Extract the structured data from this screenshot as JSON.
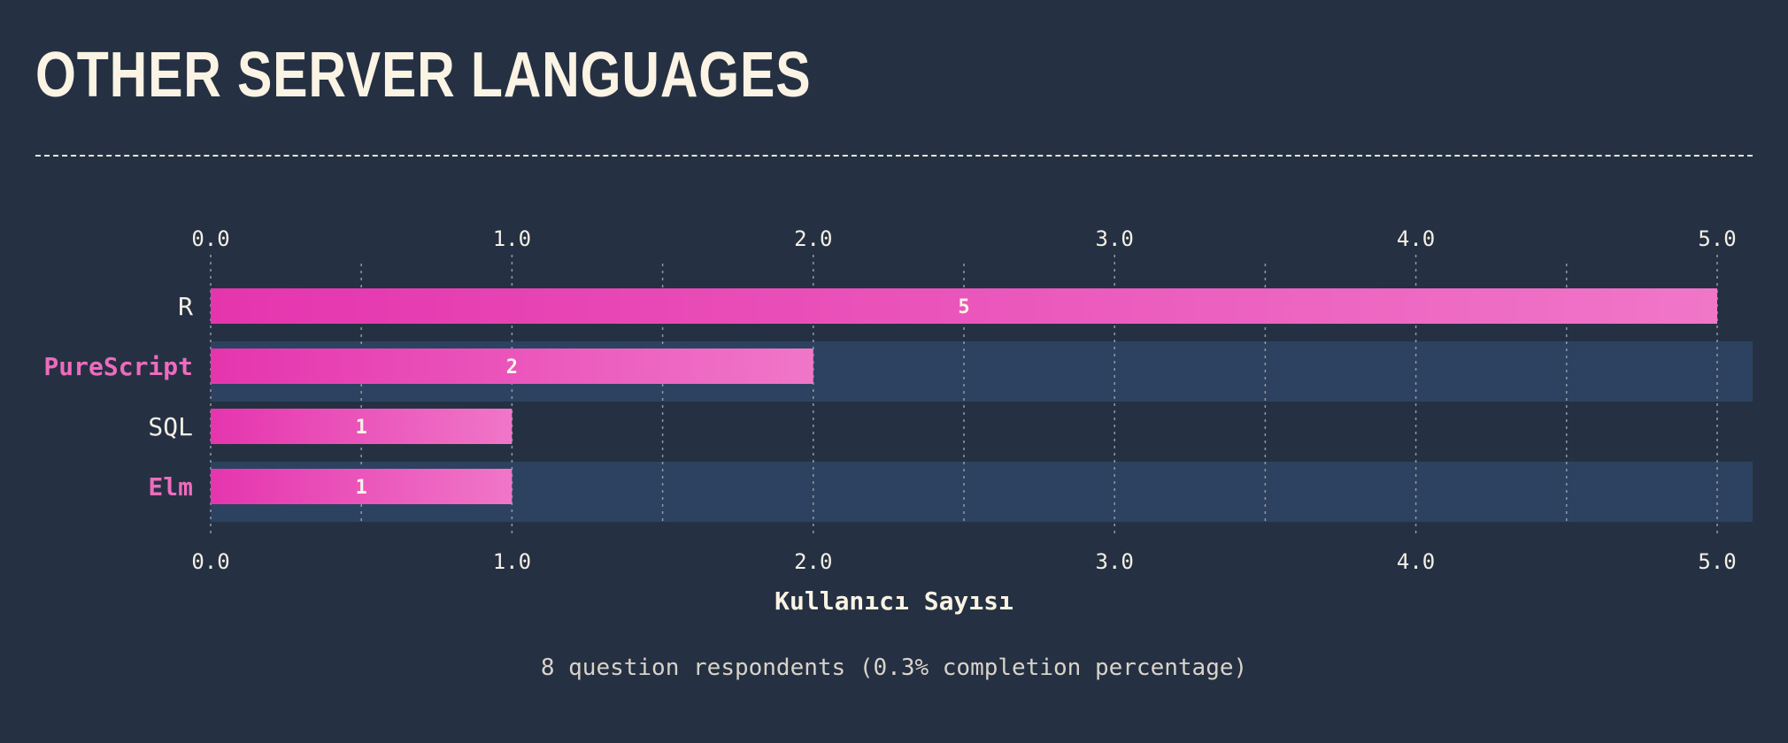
{
  "header": {
    "title": "OTHER SERVER LANGUAGES"
  },
  "footer": {
    "note": "8 question respondents (0.3% completion percentage)"
  },
  "colors": {
    "background": "#253142",
    "row_band": "#2d4260",
    "bar_start": "#e535ae",
    "bar_end": "#f076c8",
    "highlight_label": "#ee6bbf",
    "text": "#f4efe6"
  },
  "chart_data": {
    "type": "bar",
    "orientation": "horizontal",
    "categories": [
      "R",
      "PureScript",
      "SQL",
      "Elm"
    ],
    "values": [
      5,
      2,
      1,
      1
    ],
    "highlighted": [
      false,
      true,
      false,
      true
    ],
    "xlabel": "Kullanıcı Sayısı",
    "ylabel": "",
    "xlim": [
      0,
      5
    ],
    "ticks": [
      "0.0",
      "1.0",
      "2.0",
      "3.0",
      "4.0",
      "5.0"
    ],
    "tick_positions": [
      0,
      1,
      2,
      3,
      4,
      5
    ],
    "grid": true,
    "axis_labels_top_and_bottom": true
  }
}
